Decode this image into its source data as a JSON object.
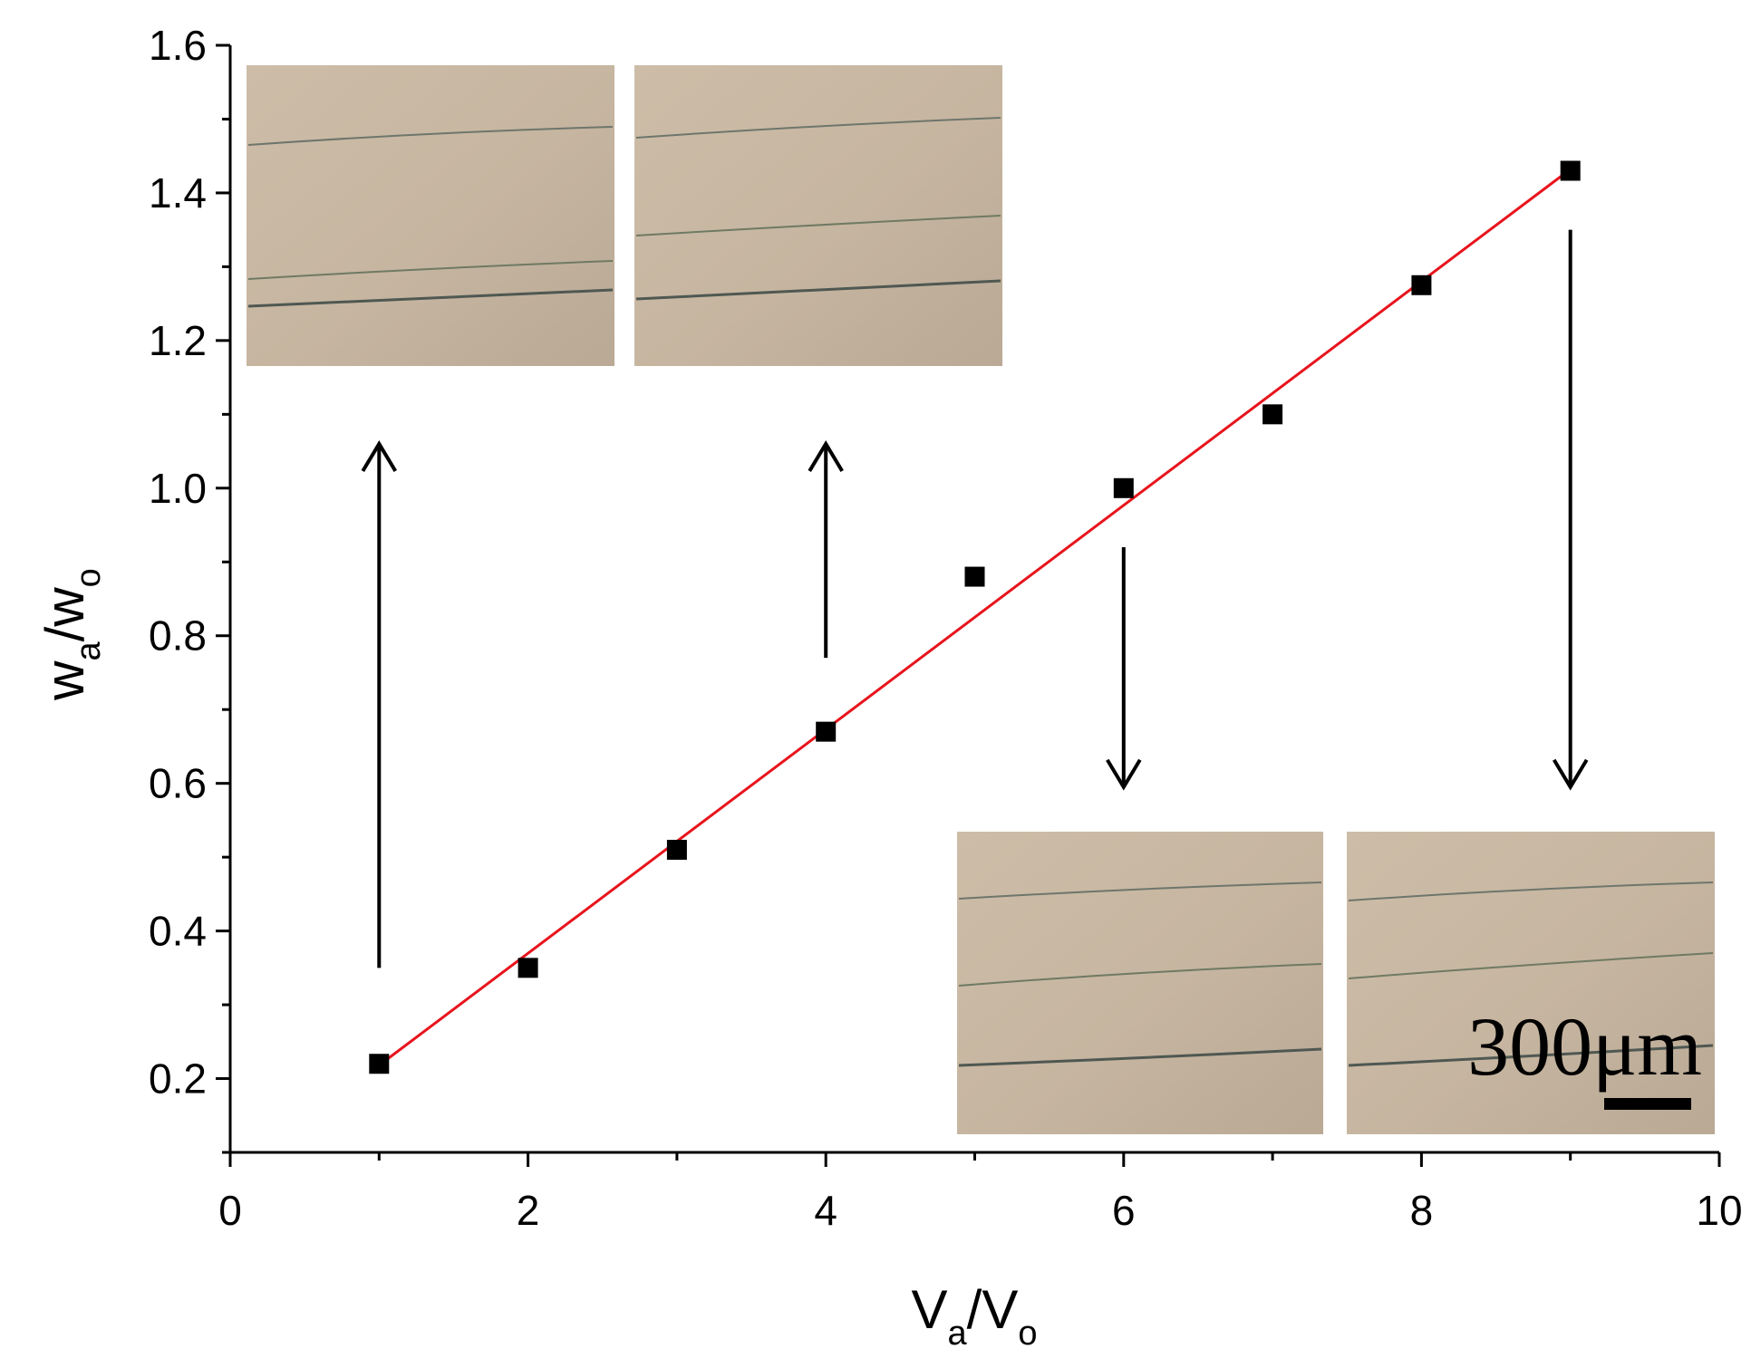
{
  "chart_data": {
    "type": "scatter",
    "xlabel": {
      "main1": "V",
      "sub1": "a",
      "sep": "/V",
      "sub2": "o"
    },
    "ylabel": {
      "main1": "w",
      "sub1": "a",
      "sep": "/w",
      "sub2": "o"
    },
    "xlim": [
      0,
      10
    ],
    "ylim": [
      0.1,
      1.6
    ],
    "x_ticks": [
      0,
      2,
      4,
      6,
      8,
      10
    ],
    "x_tick_labels": [
      "0",
      "2",
      "4",
      "6",
      "8",
      "10"
    ],
    "y_ticks": [
      0.2,
      0.4,
      0.6,
      0.8,
      1.0,
      1.2,
      1.4,
      1.6
    ],
    "y_tick_labels": [
      "0.2",
      "0.4",
      "0.6",
      "0.8",
      "1.0",
      "1.2",
      "1.4",
      "1.6"
    ],
    "grid": false,
    "series": [
      {
        "kind": "points",
        "marker": "square",
        "color": "#000000",
        "x": [
          1,
          2,
          3,
          4,
          5,
          6,
          7,
          8,
          9
        ],
        "y": [
          0.22,
          0.35,
          0.51,
          0.67,
          0.88,
          1.0,
          1.1,
          1.275,
          1.43
        ]
      },
      {
        "kind": "fit-line",
        "color": "#e8141c",
        "x": [
          1,
          9
        ],
        "y": [
          0.218,
          1.432
        ]
      }
    ],
    "annotations": {
      "arrows": [
        {
          "x": 1,
          "direction": "up",
          "from_y": 0.35,
          "to_y": 1.06
        },
        {
          "x": 4,
          "direction": "up",
          "from_y": 0.77,
          "to_y": 1.06
        },
        {
          "x": 6,
          "direction": "down",
          "from_y": 0.92,
          "to_y": 0.595
        },
        {
          "x": 9,
          "direction": "down",
          "from_y": 1.35,
          "to_y": 0.595
        }
      ],
      "scale_bar_label": "300μm"
    },
    "insets": [
      {
        "name": "micrograph-inset-1",
        "for_x": 1
      },
      {
        "name": "micrograph-inset-4",
        "for_x": 4
      },
      {
        "name": "micrograph-inset-6",
        "for_x": 6
      },
      {
        "name": "micrograph-inset-9",
        "for_x": 9
      }
    ],
    "colors": {
      "micrograph_bg": "#c8b8a2",
      "micrograph_line": "#5d6a63",
      "fit": "#e8141c"
    }
  }
}
